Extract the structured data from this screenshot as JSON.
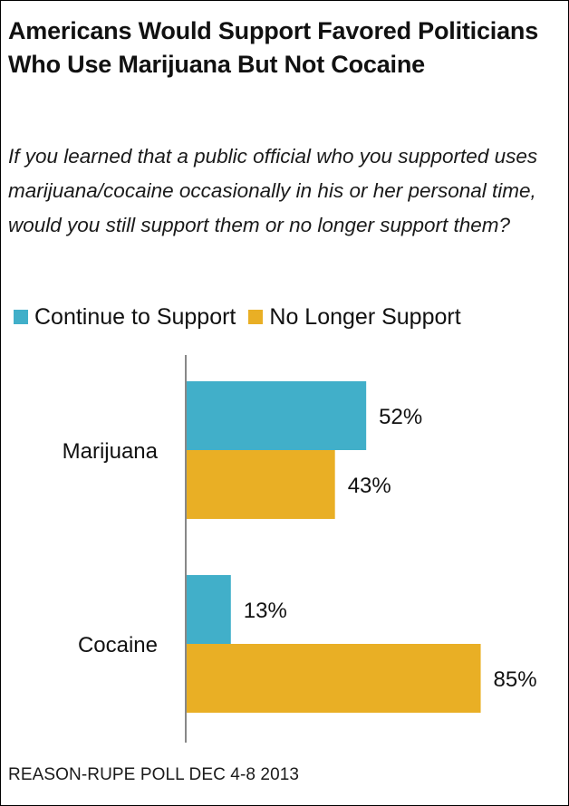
{
  "title": "Americans Would Support Favored Politicians Who Use Marijuana But Not Cocaine",
  "subtitle": "If you learned that a public official who you supported uses marijuana/cocaine occasionally in his or her personal time, would you still support them or no longer support them?",
  "source": "REASON-RUPE POLL DEC 4-8 2013",
  "colors": {
    "continue": "#41AFC9",
    "no_longer": "#E9AF25",
    "axis": "#888888"
  },
  "chart_data": {
    "type": "bar",
    "orientation": "horizontal",
    "categories": [
      "Marijuana",
      "Cocaine"
    ],
    "series": [
      {
        "name": "Continue to Support",
        "values": [
          52,
          13
        ]
      },
      {
        "name": "No Longer Support",
        "values": [
          43,
          85
        ]
      }
    ],
    "value_labels": [
      [
        "52%",
        "13%"
      ],
      [
        "43%",
        "85%"
      ]
    ],
    "xlim": [
      0,
      100
    ],
    "legend_position": "top-left",
    "grid": false
  }
}
